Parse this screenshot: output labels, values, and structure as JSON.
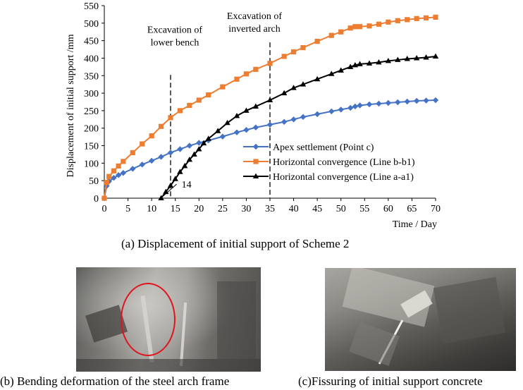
{
  "chart_data": {
    "type": "line",
    "xlabel": "Time / Day",
    "ylabel": "Displacement of initial support /mm",
    "xlim": [
      0,
      70
    ],
    "ylim": [
      0,
      550
    ],
    "xticks": [
      0,
      5,
      10,
      15,
      20,
      25,
      30,
      35,
      40,
      45,
      50,
      55,
      60,
      65,
      70
    ],
    "yticks": [
      0,
      50,
      100,
      150,
      200,
      250,
      300,
      350,
      400,
      450,
      500,
      550
    ],
    "grid": false,
    "legend_position": "center-right",
    "series": [
      {
        "name": "Apex settlement (Point c)",
        "color": "#4472C4",
        "marker": "diamond",
        "x": [
          0,
          0.5,
          1,
          2,
          3,
          4,
          6,
          8,
          10,
          12,
          14,
          16,
          18,
          20,
          22,
          25,
          28,
          30,
          32,
          35,
          38,
          40,
          42,
          45,
          48,
          50,
          52,
          53,
          54,
          56,
          58,
          60,
          62,
          64,
          66,
          68,
          70
        ],
        "y": [
          0,
          35,
          48,
          58,
          66,
          72,
          84,
          96,
          107,
          118,
          130,
          140,
          150,
          158,
          165,
          176,
          188,
          195,
          202,
          210,
          218,
          225,
          232,
          240,
          248,
          253,
          258,
          262,
          265,
          268,
          270,
          272,
          274,
          276,
          278,
          279,
          280
        ]
      },
      {
        "name": "Horizontal convergence (Line b-b1)",
        "color": "#ED7D31",
        "marker": "square",
        "x": [
          0,
          0.5,
          1,
          2,
          3,
          4,
          6,
          8,
          10,
          12,
          14,
          16,
          18,
          20,
          22,
          25,
          28,
          30,
          32,
          35,
          38,
          40,
          42,
          45,
          48,
          50,
          52,
          53,
          54,
          56,
          58,
          60,
          62,
          64,
          66,
          68,
          70
        ],
        "y": [
          0,
          45,
          62,
          78,
          92,
          105,
          130,
          155,
          178,
          205,
          230,
          250,
          265,
          280,
          295,
          318,
          340,
          355,
          368,
          385,
          405,
          418,
          430,
          448,
          465,
          475,
          486,
          490,
          490,
          492,
          497,
          503,
          507,
          510,
          513,
          515,
          517
        ]
      },
      {
        "name": "Horizontal convergence (Line a-a1)",
        "color": "#000000",
        "marker": "triangle",
        "x": [
          12,
          13,
          14,
          15,
          16,
          17,
          18,
          19,
          20,
          21,
          22,
          24,
          26,
          28,
          30,
          32,
          35,
          38,
          40,
          42,
          45,
          48,
          50,
          52,
          53,
          54,
          56,
          58,
          60,
          62,
          64,
          66,
          68,
          70
        ],
        "y": [
          0,
          18,
          36,
          55,
          75,
          92,
          110,
          125,
          140,
          157,
          170,
          192,
          215,
          235,
          250,
          262,
          280,
          300,
          315,
          325,
          340,
          355,
          365,
          375,
          380,
          383,
          385,
          388,
          392,
          395,
          398,
          400,
          402,
          405
        ]
      }
    ],
    "annotations": [
      {
        "text_lines": [
          "Excavation of",
          "lower bench"
        ],
        "x": 14
      },
      {
        "text_lines": [
          "Excavation of",
          "inverted arch"
        ],
        "x": 35
      },
      {
        "text": "14",
        "x": 12
      }
    ]
  },
  "captions": {
    "a": "(a) Displacement of initial support of Scheme 2",
    "b": "(b) Bending deformation of the steel arch frame",
    "c": "(c)Fissuring of initial support concrete"
  }
}
